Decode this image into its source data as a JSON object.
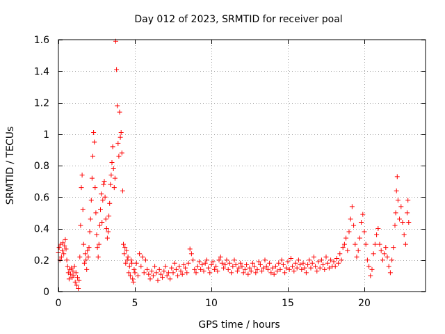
{
  "chart_data": {
    "type": "scatter",
    "title": "Day 012 of 2023, SRMTID for receiver poal",
    "xlabel": "GPS time / hours",
    "ylabel": "SRMTID / TECUs",
    "xlim": [
      0,
      24
    ],
    "ylim": [
      0,
      1.6
    ],
    "xticks": [
      0,
      5,
      10,
      15,
      20
    ],
    "xtick_labels": [
      "0",
      "5",
      "10",
      "15",
      "20"
    ],
    "yticks": [
      0,
      0.2,
      0.4,
      0.6,
      0.8,
      1.0,
      1.2,
      1.4,
      1.6
    ],
    "ytick_labels": [
      "0",
      "0.2",
      "0.4",
      "0.6",
      "0.8",
      "1",
      "1.2",
      "1.4",
      "1.6"
    ],
    "grid": true,
    "marker": "+",
    "color": "#ff0000",
    "series": [
      {
        "name": "SRMTID",
        "points": [
          [
            0.0,
            0.25
          ],
          [
            0.05,
            0.28
          ],
          [
            0.1,
            0.2
          ],
          [
            0.15,
            0.3
          ],
          [
            0.2,
            0.22
          ],
          [
            0.25,
            0.26
          ],
          [
            0.3,
            0.31
          ],
          [
            0.35,
            0.24
          ],
          [
            0.4,
            0.29
          ],
          [
            0.45,
            0.33
          ],
          [
            0.5,
            0.27
          ],
          [
            0.55,
            0.2
          ],
          [
            0.6,
            0.16
          ],
          [
            0.65,
            0.12
          ],
          [
            0.7,
            0.08
          ],
          [
            0.75,
            0.14
          ],
          [
            0.8,
            0.11
          ],
          [
            0.85,
            0.15
          ],
          [
            0.9,
            0.09
          ],
          [
            0.95,
            0.13
          ],
          [
            1.0,
            0.1
          ],
          [
            1.05,
            0.16
          ],
          [
            1.1,
            0.06
          ],
          [
            1.15,
            0.12
          ],
          [
            1.2,
            0.04
          ],
          [
            1.25,
            0.09
          ],
          [
            1.3,
            0.02
          ],
          [
            1.35,
            0.07
          ],
          [
            1.4,
            0.22
          ],
          [
            1.45,
            0.42
          ],
          [
            1.5,
            0.66
          ],
          [
            1.55,
            0.74
          ],
          [
            1.6,
            0.52
          ],
          [
            1.65,
            0.3
          ],
          [
            1.7,
            0.18
          ],
          [
            1.75,
            0.24
          ],
          [
            1.8,
            0.2
          ],
          [
            1.85,
            0.14
          ],
          [
            1.9,
            0.26
          ],
          [
            1.95,
            0.22
          ],
          [
            2.0,
            0.28
          ],
          [
            2.05,
            0.38
          ],
          [
            2.1,
            0.46
          ],
          [
            2.15,
            0.58
          ],
          [
            2.2,
            0.72
          ],
          [
            2.25,
            0.86
          ],
          [
            2.3,
            1.01
          ],
          [
            2.35,
            0.95
          ],
          [
            2.4,
            0.66
          ],
          [
            2.45,
            0.5
          ],
          [
            2.5,
            0.36
          ],
          [
            2.55,
            0.28
          ],
          [
            2.6,
            0.22
          ],
          [
            2.65,
            0.3
          ],
          [
            2.7,
            0.42
          ],
          [
            2.75,
            0.52
          ],
          [
            2.8,
            0.62
          ],
          [
            2.85,
            0.44
          ],
          [
            2.9,
            0.58
          ],
          [
            2.95,
            0.68
          ],
          [
            3.0,
            0.7
          ],
          [
            3.05,
            0.6
          ],
          [
            3.1,
            0.46
          ],
          [
            3.15,
            0.4
          ],
          [
            3.2,
            0.34
          ],
          [
            3.25,
            0.38
          ],
          [
            3.3,
            0.48
          ],
          [
            3.35,
            0.56
          ],
          [
            3.4,
            0.68
          ],
          [
            3.45,
            0.74
          ],
          [
            3.5,
            0.82
          ],
          [
            3.55,
            0.92
          ],
          [
            3.6,
            0.78
          ],
          [
            3.65,
            0.66
          ],
          [
            3.7,
            0.72
          ],
          [
            3.75,
            1.59
          ],
          [
            3.8,
            1.41
          ],
          [
            3.85,
            1.18
          ],
          [
            3.9,
            0.94
          ],
          [
            3.95,
            0.86
          ],
          [
            4.0,
            1.14
          ],
          [
            4.05,
            0.98
          ],
          [
            4.1,
            1.01
          ],
          [
            4.15,
            0.88
          ],
          [
            4.2,
            0.64
          ],
          [
            4.25,
            0.3
          ],
          [
            4.3,
            0.24
          ],
          [
            4.35,
            0.28
          ],
          [
            4.4,
            0.18
          ],
          [
            4.45,
            0.26
          ],
          [
            4.5,
            0.2
          ],
          [
            4.55,
            0.22
          ],
          [
            4.6,
            0.12
          ],
          [
            4.65,
            0.16
          ],
          [
            4.7,
            0.1
          ],
          [
            4.75,
            0.2
          ],
          [
            4.8,
            0.18
          ],
          [
            4.85,
            0.08
          ],
          [
            4.9,
            0.06
          ],
          [
            4.95,
            0.14
          ],
          [
            5.0,
            0.12
          ],
          [
            5.1,
            0.18
          ],
          [
            5.2,
            0.1
          ],
          [
            5.3,
            0.24
          ],
          [
            5.4,
            0.16
          ],
          [
            5.5,
            0.22
          ],
          [
            5.6,
            0.12
          ],
          [
            5.7,
            0.2
          ],
          [
            5.8,
            0.14
          ],
          [
            5.9,
            0.11
          ],
          [
            6.0,
            0.08
          ],
          [
            6.1,
            0.13
          ],
          [
            6.2,
            0.1
          ],
          [
            6.3,
            0.16
          ],
          [
            6.4,
            0.12
          ],
          [
            6.5,
            0.07
          ],
          [
            6.6,
            0.14
          ],
          [
            6.7,
            0.11
          ],
          [
            6.8,
            0.09
          ],
          [
            6.9,
            0.13
          ],
          [
            7.0,
            0.16
          ],
          [
            7.1,
            0.1
          ],
          [
            7.2,
            0.12
          ],
          [
            7.3,
            0.08
          ],
          [
            7.4,
            0.15
          ],
          [
            7.5,
            0.12
          ],
          [
            7.6,
            0.18
          ],
          [
            7.7,
            0.14
          ],
          [
            7.8,
            0.1
          ],
          [
            7.9,
            0.16
          ],
          [
            8.0,
            0.13
          ],
          [
            8.1,
            0.11
          ],
          [
            8.2,
            0.17
          ],
          [
            8.3,
            0.15
          ],
          [
            8.4,
            0.12
          ],
          [
            8.5,
            0.18
          ],
          [
            8.6,
            0.27
          ],
          [
            8.7,
            0.24
          ],
          [
            8.8,
            0.2
          ],
          [
            8.9,
            0.14
          ],
          [
            9.0,
            0.12
          ],
          [
            9.1,
            0.16
          ],
          [
            9.2,
            0.19
          ],
          [
            9.3,
            0.14
          ],
          [
            9.4,
            0.17
          ],
          [
            9.5,
            0.13
          ],
          [
            9.6,
            0.18
          ],
          [
            9.7,
            0.2
          ],
          [
            9.8,
            0.15
          ],
          [
            9.9,
            0.12
          ],
          [
            10.0,
            0.17
          ],
          [
            10.1,
            0.19
          ],
          [
            10.2,
            0.14
          ],
          [
            10.3,
            0.16
          ],
          [
            10.4,
            0.13
          ],
          [
            10.5,
            0.2
          ],
          [
            10.6,
            0.22
          ],
          [
            10.7,
            0.18
          ],
          [
            10.8,
            0.15
          ],
          [
            10.9,
            0.17
          ],
          [
            11.0,
            0.2
          ],
          [
            11.1,
            0.14
          ],
          [
            11.2,
            0.18
          ],
          [
            11.3,
            0.12
          ],
          [
            11.4,
            0.16
          ],
          [
            11.5,
            0.2
          ],
          [
            11.6,
            0.17
          ],
          [
            11.7,
            0.13
          ],
          [
            11.8,
            0.15
          ],
          [
            11.9,
            0.18
          ],
          [
            12.0,
            0.16
          ],
          [
            12.1,
            0.12
          ],
          [
            12.2,
            0.14
          ],
          [
            12.3,
            0.17
          ],
          [
            12.4,
            0.11
          ],
          [
            12.5,
            0.15
          ],
          [
            12.6,
            0.13
          ],
          [
            12.7,
            0.18
          ],
          [
            12.8,
            0.16
          ],
          [
            12.9,
            0.12
          ],
          [
            13.0,
            0.14
          ],
          [
            13.1,
            0.19
          ],
          [
            13.2,
            0.17
          ],
          [
            13.3,
            0.13
          ],
          [
            13.4,
            0.15
          ],
          [
            13.5,
            0.2
          ],
          [
            13.6,
            0.16
          ],
          [
            13.7,
            0.14
          ],
          [
            13.8,
            0.18
          ],
          [
            13.9,
            0.12
          ],
          [
            14.0,
            0.15
          ],
          [
            14.1,
            0.11
          ],
          [
            14.2,
            0.16
          ],
          [
            14.3,
            0.13
          ],
          [
            14.4,
            0.18
          ],
          [
            14.5,
            0.14
          ],
          [
            14.6,
            0.2
          ],
          [
            14.7,
            0.17
          ],
          [
            14.8,
            0.12
          ],
          [
            14.9,
            0.15
          ],
          [
            15.0,
            0.19
          ],
          [
            15.1,
            0.14
          ],
          [
            15.2,
            0.21
          ],
          [
            15.3,
            0.16
          ],
          [
            15.4,
            0.13
          ],
          [
            15.5,
            0.18
          ],
          [
            15.6,
            0.15
          ],
          [
            15.7,
            0.2
          ],
          [
            15.8,
            0.17
          ],
          [
            15.9,
            0.14
          ],
          [
            16.0,
            0.18
          ],
          [
            16.1,
            0.15
          ],
          [
            16.2,
            0.12
          ],
          [
            16.3,
            0.17
          ],
          [
            16.4,
            0.2
          ],
          [
            16.5,
            0.15
          ],
          [
            16.6,
            0.18
          ],
          [
            16.7,
            0.22
          ],
          [
            16.8,
            0.16
          ],
          [
            16.9,
            0.13
          ],
          [
            17.0,
            0.19
          ],
          [
            17.1,
            0.15
          ],
          [
            17.2,
            0.2
          ],
          [
            17.3,
            0.17
          ],
          [
            17.4,
            0.14
          ],
          [
            17.5,
            0.22
          ],
          [
            17.6,
            0.18
          ],
          [
            17.7,
            0.15
          ],
          [
            17.8,
            0.2
          ],
          [
            17.9,
            0.16
          ],
          [
            18.0,
            0.19
          ],
          [
            18.1,
            0.16
          ],
          [
            18.2,
            0.21
          ],
          [
            18.3,
            0.18
          ],
          [
            18.4,
            0.24
          ],
          [
            18.5,
            0.2
          ],
          [
            18.6,
            0.28
          ],
          [
            18.7,
            0.3
          ],
          [
            18.8,
            0.34
          ],
          [
            18.9,
            0.26
          ],
          [
            19.0,
            0.38
          ],
          [
            19.1,
            0.46
          ],
          [
            19.2,
            0.54
          ],
          [
            19.3,
            0.42
          ],
          [
            19.4,
            0.3
          ],
          [
            19.5,
            0.22
          ],
          [
            19.6,
            0.26
          ],
          [
            19.7,
            0.34
          ],
          [
            19.8,
            0.44
          ],
          [
            19.9,
            0.49
          ],
          [
            20.0,
            0.38
          ],
          [
            20.1,
            0.3
          ],
          [
            20.2,
            0.2
          ],
          [
            20.3,
            0.16
          ],
          [
            20.4,
            0.1
          ],
          [
            20.5,
            0.14
          ],
          [
            20.6,
            0.24
          ],
          [
            20.7,
            0.3
          ],
          [
            20.8,
            0.36
          ],
          [
            20.9,
            0.4
          ],
          [
            21.0,
            0.3
          ],
          [
            21.1,
            0.26
          ],
          [
            21.2,
            0.2
          ],
          [
            21.3,
            0.24
          ],
          [
            21.4,
            0.28
          ],
          [
            21.5,
            0.22
          ],
          [
            21.6,
            0.16
          ],
          [
            21.7,
            0.12
          ],
          [
            21.8,
            0.2
          ],
          [
            21.9,
            0.28
          ],
          [
            22.0,
            0.42
          ],
          [
            22.05,
            0.5
          ],
          [
            22.1,
            0.64
          ],
          [
            22.15,
            0.73
          ],
          [
            22.2,
            0.58
          ],
          [
            22.3,
            0.46
          ],
          [
            22.4,
            0.54
          ],
          [
            22.5,
            0.44
          ],
          [
            22.6,
            0.36
          ],
          [
            22.7,
            0.3
          ],
          [
            22.8,
            0.5
          ],
          [
            22.85,
            0.58
          ],
          [
            22.9,
            0.44
          ]
        ]
      }
    ]
  }
}
